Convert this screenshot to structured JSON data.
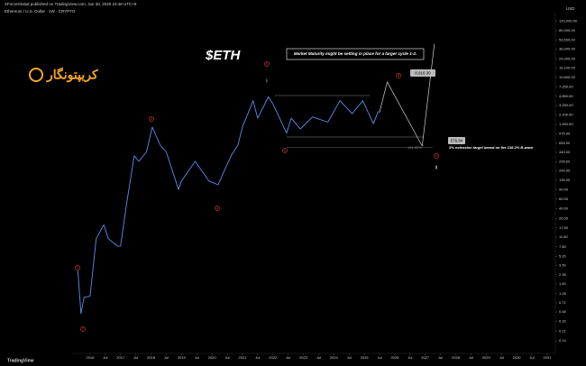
{
  "header": {
    "publisher": "XForceGlobal published on TradingView.com, Jun 30, 2025 23:48 UTC+8",
    "symbol": "Ethereum / U.S. Dollar · 1W · CRYPTO"
  },
  "logo": "کریپتونگار",
  "footer": "TradingView",
  "chart_data": {
    "type": "line",
    "title": "$ETH",
    "y_unit": "USD",
    "log_scale": true,
    "grid": false,
    "color": "#5b8def",
    "x": [
      2015.6,
      2015.7,
      2015.8,
      2016.0,
      2016.2,
      2016.45,
      2016.6,
      2016.9,
      2017.0,
      2017.2,
      2017.45,
      2017.6,
      2017.85,
      2018.04,
      2018.3,
      2018.5,
      2018.9,
      2019.0,
      2019.45,
      2019.9,
      2020.2,
      2020.45,
      2020.65,
      2020.85,
      2021.0,
      2021.35,
      2021.5,
      2021.85,
      2022.0,
      2022.45,
      2022.6,
      2022.9,
      2023.3,
      2023.8,
      2024.2,
      2024.6,
      2024.95,
      2025.3,
      2025.45,
      2025.5
    ],
    "values": [
      2.8,
      0.45,
      0.9,
      0.95,
      11,
      20,
      11,
      8,
      8,
      50,
      380,
      300,
      450,
      1300,
      600,
      450,
      90,
      130,
      300,
      130,
      110,
      230,
      400,
      600,
      1300,
      4000,
      1900,
      4700,
      3500,
      1000,
      1900,
      1200,
      2000,
      1600,
      4000,
      2300,
      4000,
      1500,
      2500,
      2450
    ],
    "projection": {
      "color": "#d0d0d0",
      "x": [
        2025.5,
        2025.75,
        2026.9,
        2027.3
      ],
      "values": [
        2450,
        8916.3,
        576.84,
        45000
      ]
    },
    "xlim": [
      2015.41,
      2031.24
    ],
    "ylim": [
      0.082,
      166000
    ],
    "xticks": [
      2016,
      {
        "value": 2016.5,
        "label": "Jul"
      },
      2017,
      {
        "value": 2017.5,
        "label": "Jul"
      },
      2018,
      {
        "value": 2018.5,
        "label": "Jul"
      },
      2019,
      {
        "value": 2019.5,
        "label": "Jul"
      },
      2020,
      {
        "value": 2020.5,
        "label": "Jul"
      },
      2021,
      {
        "value": 2021.5,
        "label": "Jul"
      },
      2022,
      {
        "value": 2022.5,
        "label": "Jul"
      },
      2023,
      {
        "value": 2023.5,
        "label": "Jul"
      },
      2024,
      {
        "value": 2024.5,
        "label": "Jul"
      },
      2025,
      {
        "value": 2025.5,
        "label": "Jul"
      },
      2026,
      {
        "value": 2026.5,
        "label": "Jul"
      },
      2027,
      {
        "value": 2027.5,
        "label": "Jul"
      },
      2028,
      {
        "value": 2028.5,
        "label": "Jul"
      },
      2029,
      {
        "value": 2029.5,
        "label": "Jul"
      },
      2030,
      {
        "value": 2030.5,
        "label": "Jul"
      },
      2031
    ],
    "yticks": [
      {
        "value": 0.14,
        "label": "0.14"
      },
      {
        "value": 0.21,
        "label": "0.21"
      },
      {
        "value": 0.32,
        "label": "0.32"
      },
      {
        "value": 0.48,
        "label": "0.48"
      },
      {
        "value": 0.71,
        "label": "0.71"
      },
      {
        "value": 1.05,
        "label": "1.05"
      },
      {
        "value": 1.6,
        "label": "1.60"
      },
      {
        "value": 2.35,
        "label": "2.35"
      },
      {
        "value": 3.5,
        "label": "3.50"
      },
      {
        "value": 5.2,
        "label": "5.20"
      },
      {
        "value": 7.8,
        "label": "7.80"
      },
      {
        "value": 11.8,
        "label": "11.80"
      },
      {
        "value": 17.5,
        "label": "17.50"
      },
      {
        "value": 26,
        "label": "26.00"
      },
      {
        "value": 40,
        "label": "40.00"
      },
      {
        "value": 60,
        "label": "60.00"
      },
      {
        "value": 90,
        "label": "90.00"
      },
      {
        "value": 135,
        "label": "135.00"
      },
      {
        "value": 200,
        "label": "200.00"
      },
      {
        "value": 295,
        "label": "295.00"
      },
      {
        "value": 440,
        "label": "440.00"
      },
      {
        "value": 655,
        "label": "655.00"
      },
      {
        "value": 975,
        "label": "975.00"
      },
      {
        "value": 1450,
        "label": "1,450.00"
      },
      {
        "value": 2200,
        "label": "2,200.00"
      },
      {
        "value": 3250,
        "label": "3,250.00"
      },
      {
        "value": 4850,
        "label": "4,850.00"
      },
      {
        "value": 7250,
        "label": "7,250.00"
      },
      {
        "value": 10800,
        "label": "10,800.00"
      },
      {
        "value": 16100,
        "label": "16,100.00"
      },
      {
        "value": 24000,
        "label": "24,000.00"
      },
      {
        "value": 36000,
        "label": "36,000.00"
      },
      {
        "value": 53500,
        "label": "53,500.00"
      },
      {
        "value": 80000,
        "label": "80,000.00"
      },
      {
        "value": 120000,
        "label": "120,000.00"
      }
    ],
    "annotations": {
      "note": "Market Maturity might be setting in place for a larger cycle 1-2.",
      "target_high": "8,916.30",
      "target_low": "576.84",
      "extension": "3% extension target based on the 138.2% B-wave",
      "fib": "161.80%"
    },
    "wave_labels": [
      "1",
      "2",
      "3",
      "4",
      "5",
      "A",
      "B",
      "C",
      "I",
      "II"
    ]
  }
}
